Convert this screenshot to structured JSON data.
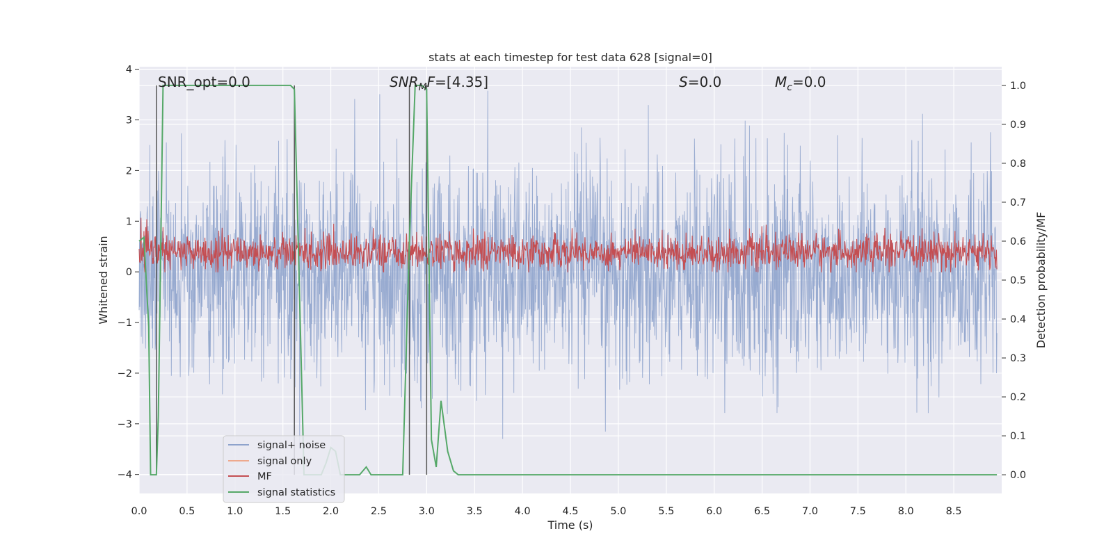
{
  "chart_data": {
    "type": "line",
    "title": "stats at each timestep for test data 628 [signal=0]",
    "xlabel": "Time (s)",
    "ylabel_left": "Whitened strain",
    "ylabel_right": "Detection probability/MF",
    "xlim": [
      0.0,
      9.0
    ],
    "ylim_left": [
      -4.375,
      4.05
    ],
    "ylim_right": [
      -0.048,
      1.048
    ],
    "x_ticks": [
      0.0,
      0.5,
      1.0,
      1.5,
      2.0,
      2.5,
      3.0,
      3.5,
      4.0,
      4.5,
      5.0,
      5.5,
      6.0,
      6.5,
      7.0,
      7.5,
      8.0,
      8.5
    ],
    "x_tick_labels": [
      "0.0",
      "0.5",
      "1.0",
      "1.5",
      "2.0",
      "2.5",
      "3.0",
      "3.5",
      "4.0",
      "4.5",
      "5.0",
      "5.5",
      "6.0",
      "6.5",
      "7.0",
      "7.5",
      "8.0",
      "8.5"
    ],
    "y_left_ticks": [
      4,
      3,
      2,
      1,
      0,
      -1,
      -2,
      -3,
      -4
    ],
    "y_left_tick_labels": [
      "4",
      "3",
      "2",
      "1",
      "0",
      "−1",
      "−2",
      "−3",
      "−4"
    ],
    "y_right_ticks": [
      1.0,
      0.9,
      0.8,
      0.7,
      0.6,
      0.5,
      0.4,
      0.3,
      0.2,
      0.1,
      0.0
    ],
    "y_right_tick_labels": [
      "1.0",
      "0.9",
      "0.8",
      "0.7",
      "0.6",
      "0.5",
      "0.4",
      "0.3",
      "0.2",
      "0.1",
      "0.0"
    ],
    "grid": true,
    "legend_position": "lower-left",
    "annotations": [
      {
        "text": "SNR_opt=0.0",
        "x": 0.19,
        "y_right": 1.02
      },
      {
        "text": "SNR_MF=[4.35]",
        "x": 2.6,
        "y_right": 1.02
      },
      {
        "text": "S=0.0",
        "x": 5.6,
        "y_right": 1.02
      },
      {
        "text": "M_c=0.0",
        "x": 6.6,
        "y_right": 1.02
      }
    ],
    "vertical_lines_x": [
      0.18,
      1.62,
      2.82,
      3.0
    ],
    "vertical_lines_top_right": 1.0,
    "series": [
      {
        "name": "signal+ noise",
        "axis": "left",
        "color": "#8ea3cc",
        "description": "dense whitened noise, approx range -4 to 3.7"
      },
      {
        "name": "signal only",
        "axis": "left",
        "color": "#eea98d",
        "values": []
      },
      {
        "name": "MF",
        "axis": "right",
        "color": "#c44e52",
        "description": "matched-filter output fluctuating approx 0.52 to 0.65"
      },
      {
        "name": "signal statistics",
        "axis": "right",
        "color": "#55a868",
        "x": [
          0.0,
          0.05,
          0.1,
          0.12,
          0.18,
          0.2,
          0.25,
          0.3,
          0.5,
          1.0,
          1.5,
          1.58,
          1.62,
          1.66,
          1.72,
          1.8,
          1.9,
          1.95,
          2.0,
          2.05,
          2.1,
          2.2,
          2.3,
          2.37,
          2.42,
          2.6,
          2.75,
          2.82,
          2.88,
          2.95,
          3.0,
          3.05,
          3.1,
          3.15,
          3.22,
          3.28,
          3.33,
          3.5,
          4.0,
          5.0,
          6.0,
          7.0,
          8.0,
          8.95
        ],
        "y": [
          0.6,
          0.61,
          0.38,
          0.0,
          0.0,
          0.15,
          1.0,
          1.0,
          1.0,
          1.0,
          1.0,
          1.0,
          0.99,
          0.6,
          0.0,
          0.0,
          0.0,
          0.03,
          0.07,
          0.06,
          0.0,
          0.0,
          0.0,
          0.02,
          0.0,
          0.0,
          0.0,
          0.6,
          1.0,
          1.0,
          0.99,
          0.09,
          0.02,
          0.19,
          0.06,
          0.01,
          0.0,
          0.0,
          0.0,
          0.0,
          0.0,
          0.0,
          0.0,
          0.0
        ]
      }
    ]
  }
}
